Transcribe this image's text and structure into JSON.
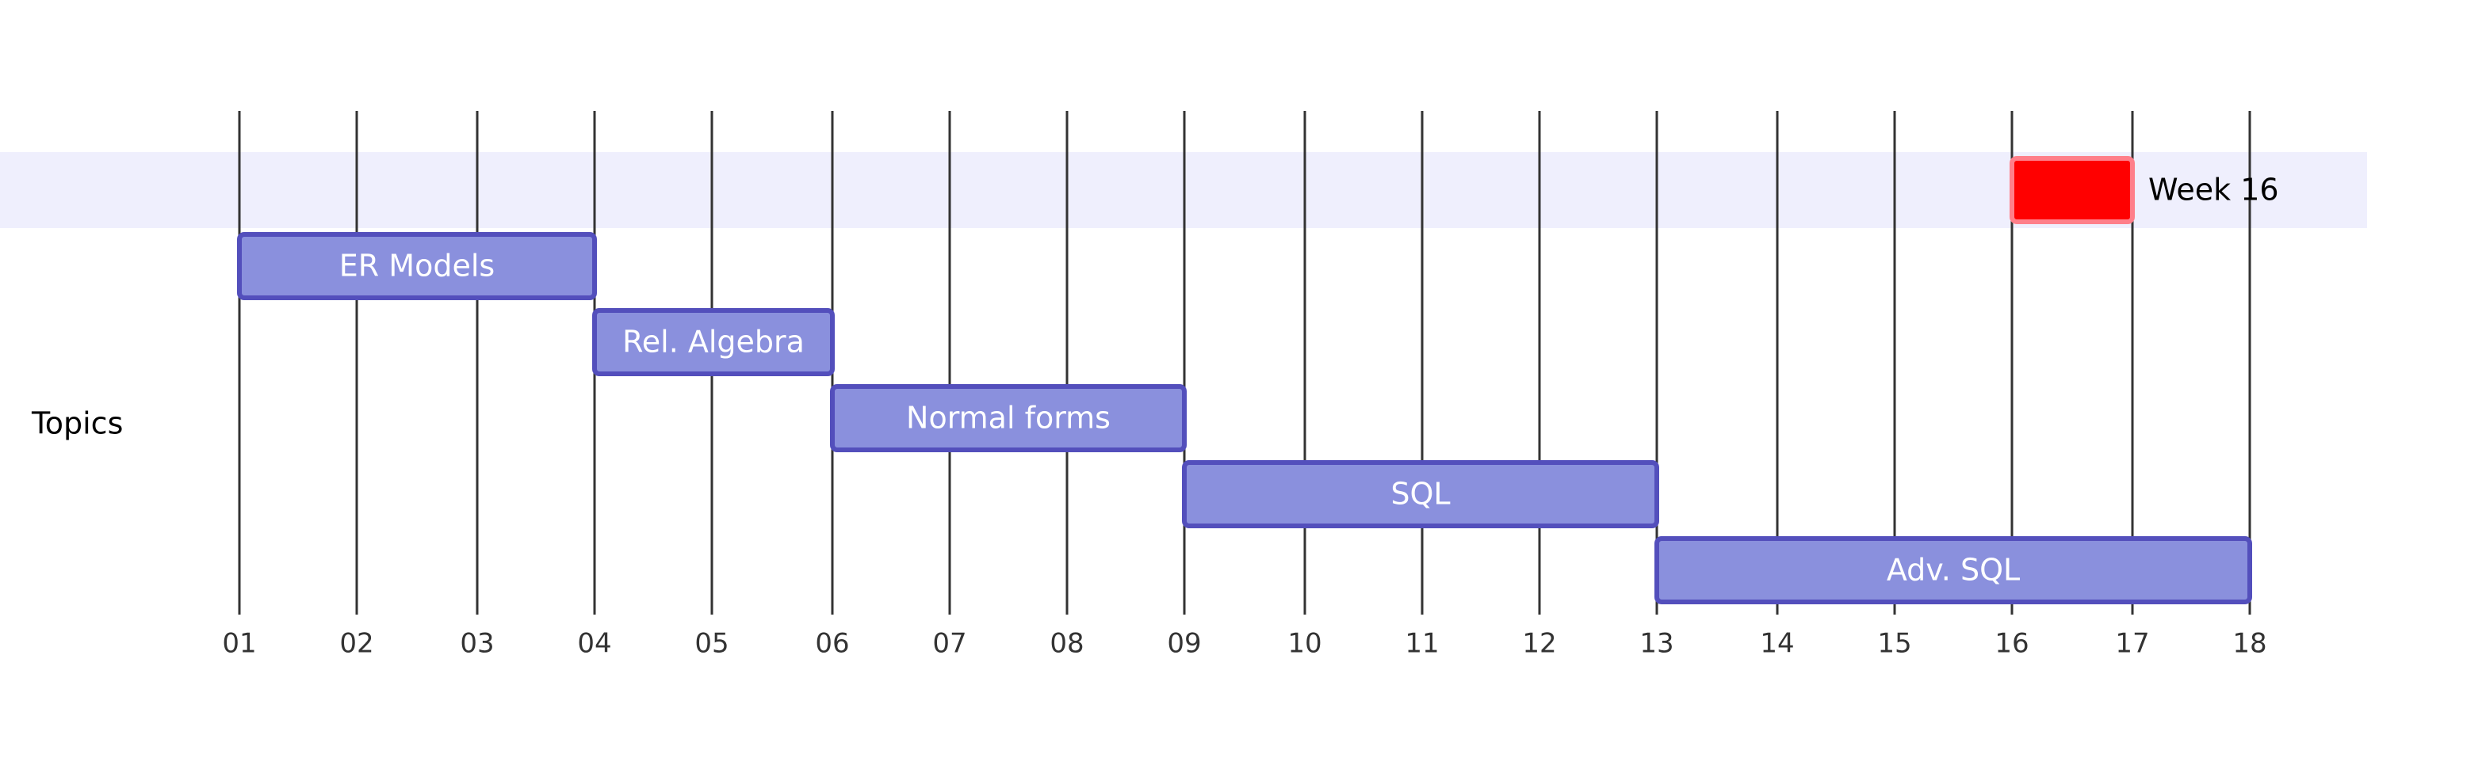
{
  "chart_data": {
    "type": "gantt",
    "title": "",
    "x_axis": {
      "unit": "week",
      "ticks": [
        "01",
        "02",
        "03",
        "04",
        "05",
        "06",
        "07",
        "08",
        "09",
        "10",
        "11",
        "12",
        "13",
        "14",
        "15",
        "16",
        "17",
        "18"
      ]
    },
    "sections": [
      {
        "name": "Topics"
      }
    ],
    "tasks": [
      {
        "label": "ER Models",
        "start": 1,
        "end": 4
      },
      {
        "label": "Rel. Algebra",
        "start": 4,
        "end": 6
      },
      {
        "label": "Normal forms",
        "start": 6,
        "end": 9
      },
      {
        "label": "SQL",
        "start": 9,
        "end": 13
      },
      {
        "label": "Adv. SQL",
        "start": 13,
        "end": 18
      }
    ],
    "milestones": [
      {
        "label": "Week 16",
        "start": 16,
        "end": 17,
        "color": "#ff0000"
      }
    ],
    "colors": {
      "task_fill": "#8a90dd",
      "task_stroke": "#534fbc",
      "grid": "#333333",
      "highlight_band": "#efeffd",
      "milestone_stroke": "#ff7f8a"
    }
  }
}
